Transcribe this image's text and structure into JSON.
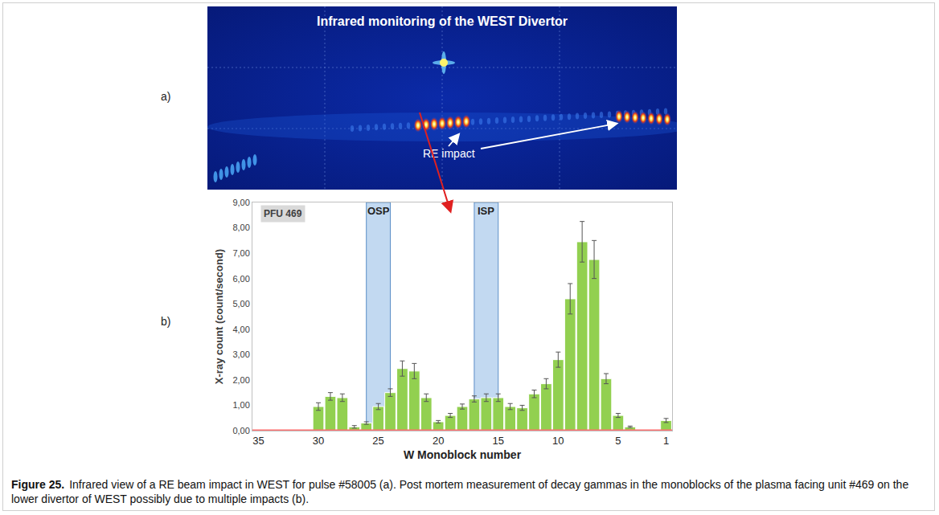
{
  "figure": {
    "panel_a": {
      "label": "a)",
      "title": "Infrared monitoring of the WEST Divertor",
      "annotation": "RE impact"
    },
    "panel_b": {
      "label": "b)"
    },
    "caption": {
      "label": "Figure 25.",
      "text": "Infrared view of a RE beam impact in WEST for pulse #58005 (a). Post mortem measurement of decay gammas in the monoblocks of the plasma facing unit #469 on the lower divertor of WEST possibly due to multiple impacts (b)."
    }
  },
  "chart_data": {
    "type": "bar",
    "annotations": [
      "PFU 469"
    ],
    "x_label": "W Monoblock number",
    "y_label": "X-ray count (count/second)",
    "x": [
      30,
      29,
      28,
      27,
      26,
      25,
      24,
      23,
      22,
      21,
      20,
      19,
      18,
      17,
      16,
      15,
      14,
      13,
      12,
      11,
      10,
      9,
      8,
      7,
      6,
      5,
      4,
      1
    ],
    "values": [
      0.95,
      1.35,
      1.3,
      0.15,
      0.3,
      0.95,
      1.5,
      2.45,
      2.35,
      1.3,
      0.35,
      0.6,
      0.95,
      1.25,
      1.3,
      1.3,
      0.95,
      0.9,
      1.45,
      1.85,
      2.8,
      5.2,
      7.45,
      6.75,
      2.05,
      0.6,
      0.15,
      0.4
    ],
    "errors": [
      0.15,
      0.15,
      0.15,
      0.05,
      0.05,
      0.12,
      0.15,
      0.3,
      0.3,
      0.15,
      0.05,
      0.08,
      0.1,
      0.12,
      0.15,
      0.15,
      0.12,
      0.1,
      0.15,
      0.2,
      0.3,
      0.6,
      0.8,
      0.75,
      0.2,
      0.08,
      0.03,
      0.08
    ],
    "color": "#92d050",
    "regions": [
      {
        "label": "OSP",
        "x": [
          26,
          24
        ]
      },
      {
        "label": "ISP",
        "x": [
          17,
          15
        ]
      }
    ],
    "reference_line": {
      "y": 0,
      "color": "#ff7070"
    },
    "xlim": [
      35.5,
      0.5
    ],
    "xticks": [
      35,
      30,
      25,
      20,
      15,
      10,
      5,
      1
    ],
    "ylim": [
      0,
      9
    ],
    "yticks": [
      {
        "value": 0,
        "label": "0,00"
      },
      {
        "value": 1,
        "label": "1,00"
      },
      {
        "value": 2,
        "label": "2,00"
      },
      {
        "value": 3,
        "label": "3,00"
      },
      {
        "value": 4,
        "label": "4,00"
      },
      {
        "value": 5,
        "label": "5,00"
      },
      {
        "value": 6,
        "label": "6,00"
      },
      {
        "value": 7,
        "label": "7,00"
      },
      {
        "value": 8,
        "label": "8,00"
      },
      {
        "value": 9,
        "label": "9,00"
      }
    ],
    "grid": false
  }
}
